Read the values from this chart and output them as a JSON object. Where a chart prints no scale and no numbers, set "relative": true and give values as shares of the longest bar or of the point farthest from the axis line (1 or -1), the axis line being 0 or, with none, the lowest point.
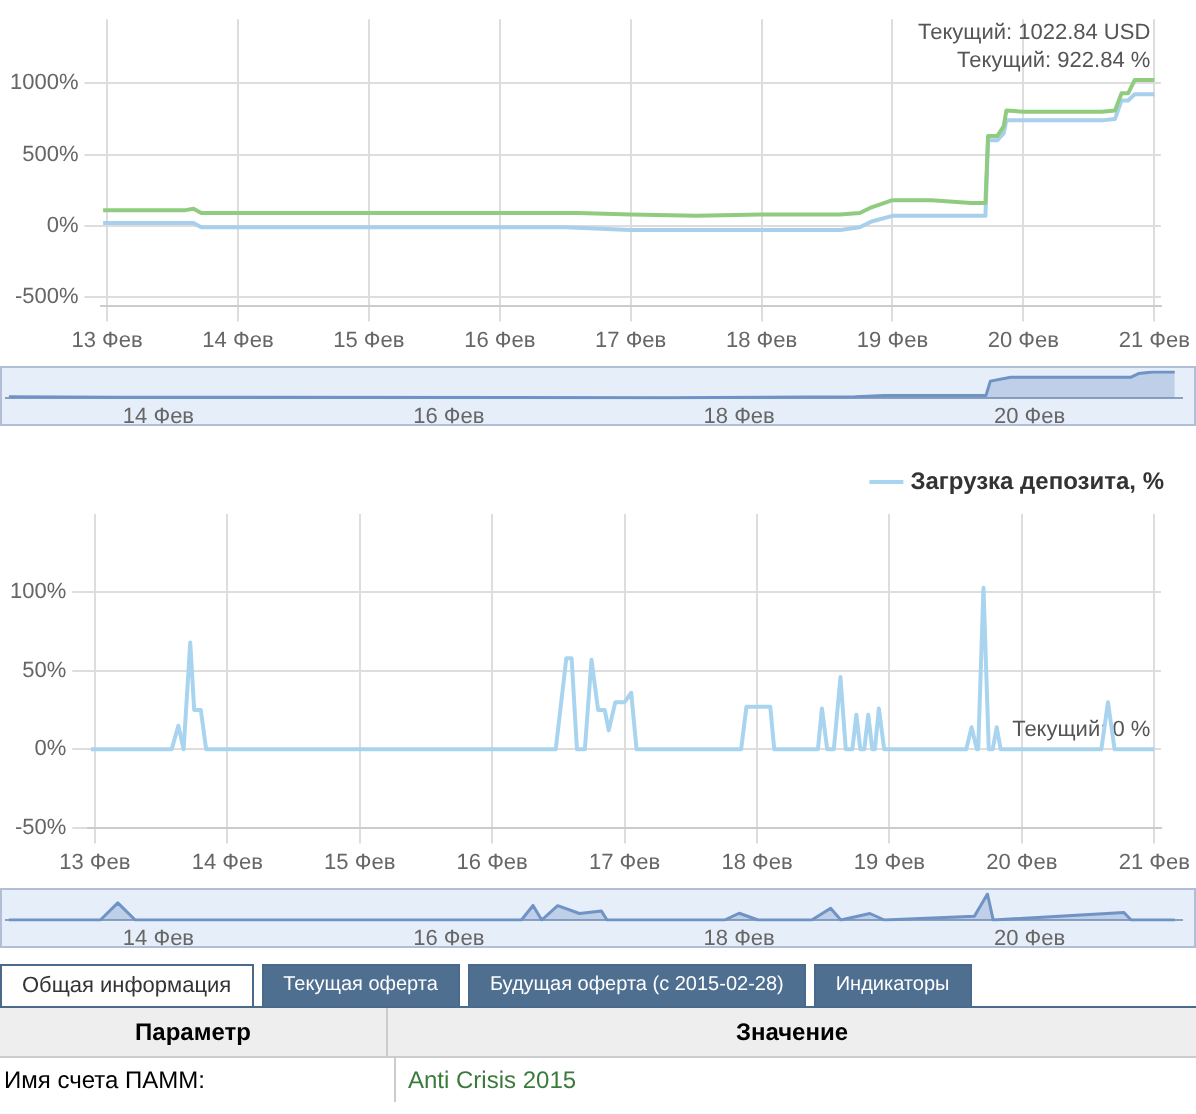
{
  "chart_data": [
    {
      "type": "line",
      "xlim": [
        12.95,
        21.05
      ],
      "ylim": [
        -560,
        1450
      ],
      "xticks": [
        {
          "value": 13,
          "label": "13 Фев"
        },
        {
          "value": 14,
          "label": "14 Фев"
        },
        {
          "value": 15,
          "label": "15 Фев"
        },
        {
          "value": 16,
          "label": "16 Фев"
        },
        {
          "value": 17,
          "label": "17 Фев"
        },
        {
          "value": 18,
          "label": "18 Фев"
        },
        {
          "value": 19,
          "label": "19 Фев"
        },
        {
          "value": 20,
          "label": "20 Фев"
        },
        {
          "value": 21,
          "label": "21 Фев"
        }
      ],
      "yticks": [
        {
          "value": -500,
          "label": "-500%"
        },
        {
          "value": 0,
          "label": "0%"
        },
        {
          "value": 500,
          "label": "500%"
        },
        {
          "value": 1000,
          "label": "1000%"
        }
      ],
      "grid": true,
      "marker": "none",
      "line_style": "solid",
      "series": [
        {
          "color": "#90cc80",
          "x": [
            12.97,
            13.6,
            13.66,
            13.72,
            16.5,
            16.6,
            17.0,
            17.5,
            18.0,
            18.6,
            18.75,
            18.84,
            19.0,
            19.3,
            19.6,
            19.71,
            19.73,
            19.8,
            19.85,
            19.87,
            20.0,
            20.6,
            20.7,
            20.75,
            20.8,
            20.85,
            21.0
          ],
          "values": [
            110,
            110,
            120,
            90,
            90,
            90,
            80,
            70,
            80,
            80,
            90,
            130,
            180,
            180,
            160,
            160,
            630,
            630,
            700,
            810,
            800,
            800,
            810,
            930,
            930,
            1022.84,
            1022.84
          ]
        },
        {
          "color": "#a8d0ec",
          "x": [
            12.97,
            13.6,
            13.66,
            13.72,
            16.5,
            17.0,
            17.5,
            18.0,
            18.6,
            18.75,
            18.84,
            19.0,
            19.3,
            19.6,
            19.71,
            19.73,
            19.8,
            19.85,
            19.87,
            20.0,
            20.6,
            20.7,
            20.75,
            20.8,
            20.85,
            21.0
          ],
          "values": [
            20,
            20,
            20,
            -10,
            -10,
            -30,
            -30,
            -30,
            -30,
            -10,
            30,
            70,
            70,
            70,
            70,
            600,
            600,
            650,
            740,
            740,
            740,
            750,
            880,
            880,
            922.84,
            922.84
          ]
        }
      ],
      "annotations": [
        "Текущий: 1022.84 USD",
        "Текущий: 922.84 %"
      ]
    },
    {
      "type": "area",
      "relative": true,
      "tick_labels": "x",
      "xlim": [
        12.95,
        21.05
      ],
      "xticks": [
        {
          "value": 14,
          "label": "14 Фев"
        },
        {
          "value": 16,
          "label": "16 Фев"
        },
        {
          "value": 18,
          "label": "18 Фев"
        },
        {
          "value": 20,
          "label": "20 Фев"
        }
      ],
      "marker": "none",
      "series": [
        {
          "color": "#6f93c4",
          "x": [
            12.97,
            13.7,
            17.5,
            18.8,
            19.0,
            19.7,
            19.73,
            19.87,
            20.7,
            20.75,
            20.85,
            21.0
          ],
          "values": [
            0.05,
            0.03,
            0.01,
            0.05,
            0.1,
            0.1,
            0.65,
            0.8,
            0.8,
            0.94,
            1,
            1
          ]
        }
      ]
    },
    {
      "type": "line",
      "xlim": [
        12.95,
        21.05
      ],
      "ylim": [
        -50,
        150
      ],
      "xticks": [
        {
          "value": 13,
          "label": "13 Фев"
        },
        {
          "value": 14,
          "label": "14 Фев"
        },
        {
          "value": 15,
          "label": "15 Фев"
        },
        {
          "value": 16,
          "label": "16 Фев"
        },
        {
          "value": 17,
          "label": "17 Фев"
        },
        {
          "value": 18,
          "label": "18 Фев"
        },
        {
          "value": 19,
          "label": "19 Фев"
        },
        {
          "value": 20,
          "label": "20 Фев"
        },
        {
          "value": 21,
          "label": "21 Фев"
        }
      ],
      "yticks": [
        {
          "value": -50,
          "label": "-50%"
        },
        {
          "value": 0,
          "label": "0%"
        },
        {
          "value": 50,
          "label": "50%"
        },
        {
          "value": 100,
          "label": "100%"
        }
      ],
      "grid": true,
      "marker": "none",
      "line_style": "solid",
      "legend": "top right",
      "series": [
        {
          "name": "Загрузка депозита, %",
          "color": "#a8d4f0",
          "x": [
            12.97,
            13.58,
            13.63,
            13.67,
            13.72,
            13.75,
            13.8,
            13.84,
            16.48,
            16.56,
            16.6,
            16.64,
            16.7,
            16.75,
            16.8,
            16.85,
            16.88,
            16.93,
            17.0,
            17.05,
            17.09,
            17.88,
            17.92,
            18.1,
            18.13,
            18.46,
            18.49,
            18.53,
            18.58,
            18.63,
            18.67,
            18.72,
            18.75,
            18.78,
            18.81,
            18.84,
            18.87,
            18.89,
            18.92,
            18.96,
            19.58,
            19.62,
            19.66,
            19.67,
            19.71,
            19.75,
            19.78,
            19.81,
            19.84,
            20.6,
            20.65,
            20.7,
            21.0
          ],
          "values": [
            0,
            0,
            15,
            0,
            68,
            25,
            25,
            0,
            0,
            58,
            58,
            0,
            0,
            57,
            25,
            25,
            12,
            30,
            30,
            36,
            0,
            0,
            27,
            27,
            0,
            0,
            26,
            0,
            0,
            46,
            0,
            0,
            22,
            0,
            0,
            22,
            0,
            0,
            26,
            0,
            0,
            14,
            0,
            0,
            103,
            0,
            0,
            14,
            0,
            0,
            30,
            0,
            0
          ]
        }
      ],
      "annotations": [
        "Текущий: 0 %"
      ]
    },
    {
      "type": "area",
      "relative": true,
      "tick_labels": "x",
      "xlim": [
        12.95,
        21.05
      ],
      "xticks": [
        {
          "value": 14,
          "label": "14 Фев"
        },
        {
          "value": 16,
          "label": "16 Фев"
        },
        {
          "value": 18,
          "label": "18 Фев"
        },
        {
          "value": 20,
          "label": "20 Фев"
        }
      ],
      "marker": "none",
      "series": [
        {
          "color": "#6f93c4",
          "x": [
            12.97,
            13.6,
            13.72,
            13.84,
            16.5,
            16.58,
            16.64,
            16.75,
            16.9,
            17.05,
            17.09,
            17.9,
            18.0,
            18.13,
            18.5,
            18.63,
            18.7,
            18.9,
            19.0,
            19.62,
            19.71,
            19.75,
            20.65,
            20.7,
            21.0
          ],
          "values": [
            0,
            0,
            0.66,
            0,
            0,
            0.56,
            0,
            0.55,
            0.25,
            0.35,
            0,
            0,
            0.26,
            0,
            0,
            0.45,
            0,
            0.25,
            0,
            0.14,
            1,
            0,
            0.29,
            0,
            0
          ]
        }
      ]
    },
    {
      "type": "other",
      "annotations": [
        "Общая информация",
        "Текущая оферта",
        "Будущая оферта (с 2015-02-28)",
        "Индикаторы",
        "Параметр",
        "Значение",
        "Имя счета ПАММ:",
        "Anti Crisis 2015"
      ]
    }
  ]
}
